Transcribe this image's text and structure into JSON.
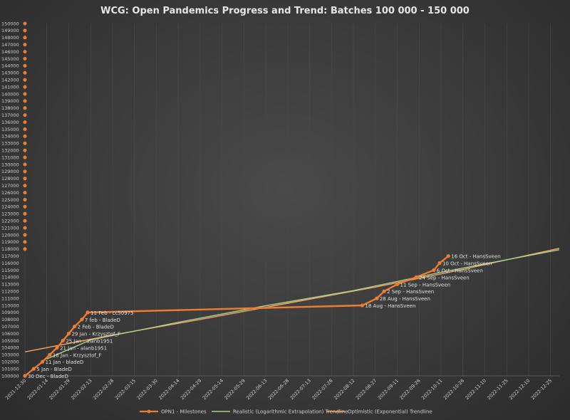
{
  "chart_data": {
    "type": "line",
    "title": "WCG: Open Pandemics Progress and Trend: Batches 100 000 - 150 000",
    "ylim": [
      100000,
      150000
    ],
    "y_ticks": [
      100000,
      101000,
      102000,
      103000,
      104000,
      105000,
      106000,
      107000,
      108000,
      109000,
      110000,
      111000,
      112000,
      113000,
      114000,
      115000,
      116000,
      117000,
      118000,
      119000,
      120000,
      121000,
      122000,
      123000,
      124000,
      125000,
      126000,
      127000,
      128000,
      129000,
      130000,
      131000,
      132000,
      133000,
      134000,
      135000,
      136000,
      137000,
      138000,
      139000,
      140000,
      141000,
      142000,
      143000,
      144000,
      145000,
      146000,
      147000,
      148000,
      149000,
      150000
    ],
    "x_ticks": [
      "2021-12-30",
      "2022-01-14",
      "2022-01-29",
      "2022-02-13",
      "2022-02-28",
      "2022-03-15",
      "2022-03-30",
      "2022-04-14",
      "2022-04-29",
      "2022-05-14",
      "2022-05-29",
      "2022-06-13",
      "2022-06-28",
      "2022-07-13",
      "2022-07-28",
      "2022-08-12",
      "2022-08-27",
      "2022-09-11",
      "2022-09-26",
      "2022-10-11",
      "2022-10-26",
      "2022-11-10",
      "2022-11-25",
      "2022-12-10",
      "2022-12-25"
    ],
    "xlim": [
      "2021-12-30",
      "2022-12-31"
    ],
    "legend_position": "bottom",
    "grid": "vertical",
    "colors": {
      "milestones": "#ed7d31",
      "realistic": "#a9d18e",
      "optimistic": "#f4a460",
      "future_targets": "#ed7d31"
    },
    "series": [
      {
        "name": "OPN1 - Milestones",
        "points": [
          {
            "x": "2021-12-30",
            "y": 100000,
            "label": "30 Dec - BladeD"
          },
          {
            "x": "2022-01-05",
            "y": 101000,
            "label": "5 Jan - BladeD"
          },
          {
            "x": "2022-01-11",
            "y": 102000,
            "label": "11 Jan - bladeD"
          },
          {
            "x": "2022-01-16",
            "y": 103000,
            "label": "16 Jan - Krzysztof_F"
          },
          {
            "x": "2022-01-21",
            "y": 104000,
            "label": "21 Jan - alanb1951"
          },
          {
            "x": "2022-01-25",
            "y": 105000,
            "label": "25 Jan - alanb1951"
          },
          {
            "x": "2022-01-29",
            "y": 106000,
            "label": "29 Jan - Krzysztof_F"
          },
          {
            "x": "2022-02-02",
            "y": 107000,
            "label": "2 Feb - BladeD"
          },
          {
            "x": "2022-02-07",
            "y": 108000,
            "label": "7 feb - BladeD"
          },
          {
            "x": "2022-02-11",
            "y": 109000,
            "label": "11 Feb - cc50975"
          },
          {
            "x": "2022-08-18",
            "y": 110000,
            "label": "18 Aug - HansSveen"
          },
          {
            "x": "2022-08-28",
            "y": 111000,
            "label": "28 Aug - HansSveen"
          },
          {
            "x": "2022-09-02",
            "y": 112000,
            "label": "2 Sep - HansSveen"
          },
          {
            "x": "2022-09-11",
            "y": 113000,
            "label": "11 Sep - HansSveen"
          },
          {
            "x": "2022-09-24",
            "y": 114000,
            "label": "24 Sep - HansSveen"
          },
          {
            "x": "2022-10-06",
            "y": 115000,
            "label": "6 Oct - HansSveen"
          },
          {
            "x": "2022-10-10",
            "y": 116000,
            "label": "10 Oct - HansSveen"
          },
          {
            "x": "2022-10-16",
            "y": 117000,
            "label": "16 Oct - HansSveen"
          }
        ],
        "future_targets": {
          "x": "2021-12-30",
          "y_from": 118000,
          "y_to": 150000,
          "step": 1000
        }
      },
      {
        "name": "Realistic (Logarithmic Extrapolation) Trendline",
        "points": [
          {
            "x": "2022-01-14",
            "y": 102400
          },
          {
            "x": "2022-02-13",
            "y": 105100
          },
          {
            "x": "2022-04-14",
            "y": 107600
          },
          {
            "x": "2022-06-13",
            "y": 109950
          },
          {
            "x": "2022-08-12",
            "y": 112100
          },
          {
            "x": "2022-10-11",
            "y": 114700
          },
          {
            "x": "2022-12-31",
            "y": 117900
          }
        ]
      },
      {
        "name": "Optimistic (Exponential) Trendline",
        "points": [
          {
            "x": "2021-12-30",
            "y": 103400
          },
          {
            "x": "2022-02-28",
            "y": 105800
          },
          {
            "x": "2022-04-29",
            "y": 108000
          },
          {
            "x": "2022-06-28",
            "y": 110300
          },
          {
            "x": "2022-08-27",
            "y": 112600
          },
          {
            "x": "2022-10-26",
            "y": 115100
          },
          {
            "x": "2022-12-31",
            "y": 118100
          }
        ]
      }
    ]
  }
}
